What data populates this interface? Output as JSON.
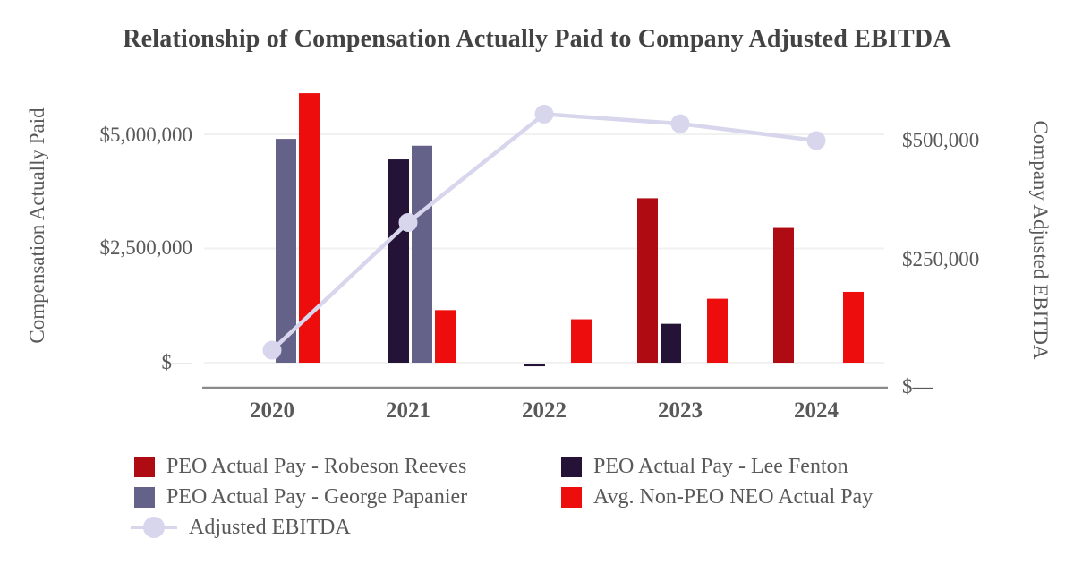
{
  "chart_data": {
    "type": "combo-bar-line",
    "title": "Relationship of Compensation Actually Paid to Company Adjusted EBITDA",
    "categories": [
      "2020",
      "2021",
      "2022",
      "2023",
      "2024"
    ],
    "series": [
      {
        "name": "PEO Actual Pay - Robeson Reeves",
        "type": "bar",
        "axis": "left",
        "color": "#AE0C12",
        "values": [
          null,
          null,
          null,
          3600000,
          2950000
        ]
      },
      {
        "name": "PEO Actual Pay - Lee Fenton",
        "type": "bar",
        "axis": "left",
        "color": "#241337",
        "values": [
          null,
          4450000,
          -60000,
          850000,
          null
        ]
      },
      {
        "name": "PEO Actual Pay - George Papanier",
        "type": "bar",
        "axis": "left",
        "color": "#656289",
        "values": [
          4900000,
          4750000,
          null,
          null,
          null
        ]
      },
      {
        "name": "Avg. Non-PEO NEO Actual Pay",
        "type": "bar",
        "axis": "left",
        "color": "#ED0D0D",
        "values": [
          5900000,
          1150000,
          950000,
          1400000,
          1550000
        ]
      },
      {
        "name": "Adjusted EBITDA",
        "type": "line",
        "axis": "right",
        "color": "#D8D6ED",
        "values": [
          65000,
          330000,
          555000,
          535000,
          500000
        ]
      }
    ],
    "left_axis": {
      "label": "Compensation Actually Paid",
      "tick_values": [
        0,
        2500000,
        5000000
      ],
      "tick_labels": [
        "$—",
        "$2,500,000",
        "$5,000,000"
      ]
    },
    "right_axis": {
      "label": "Company Adjusted EBITDA",
      "tick_values": [
        0,
        250000,
        500000
      ],
      "tick_labels": [
        "$—",
        "$250,000",
        "$500,000"
      ]
    },
    "legend_position": "bottom",
    "grid": "horizontal-light-gridlines",
    "colors": {
      "grid_line": "#F1F1F1",
      "axis_line": "#8A8A8A",
      "text": "#595959",
      "title_text": "#434343"
    }
  }
}
